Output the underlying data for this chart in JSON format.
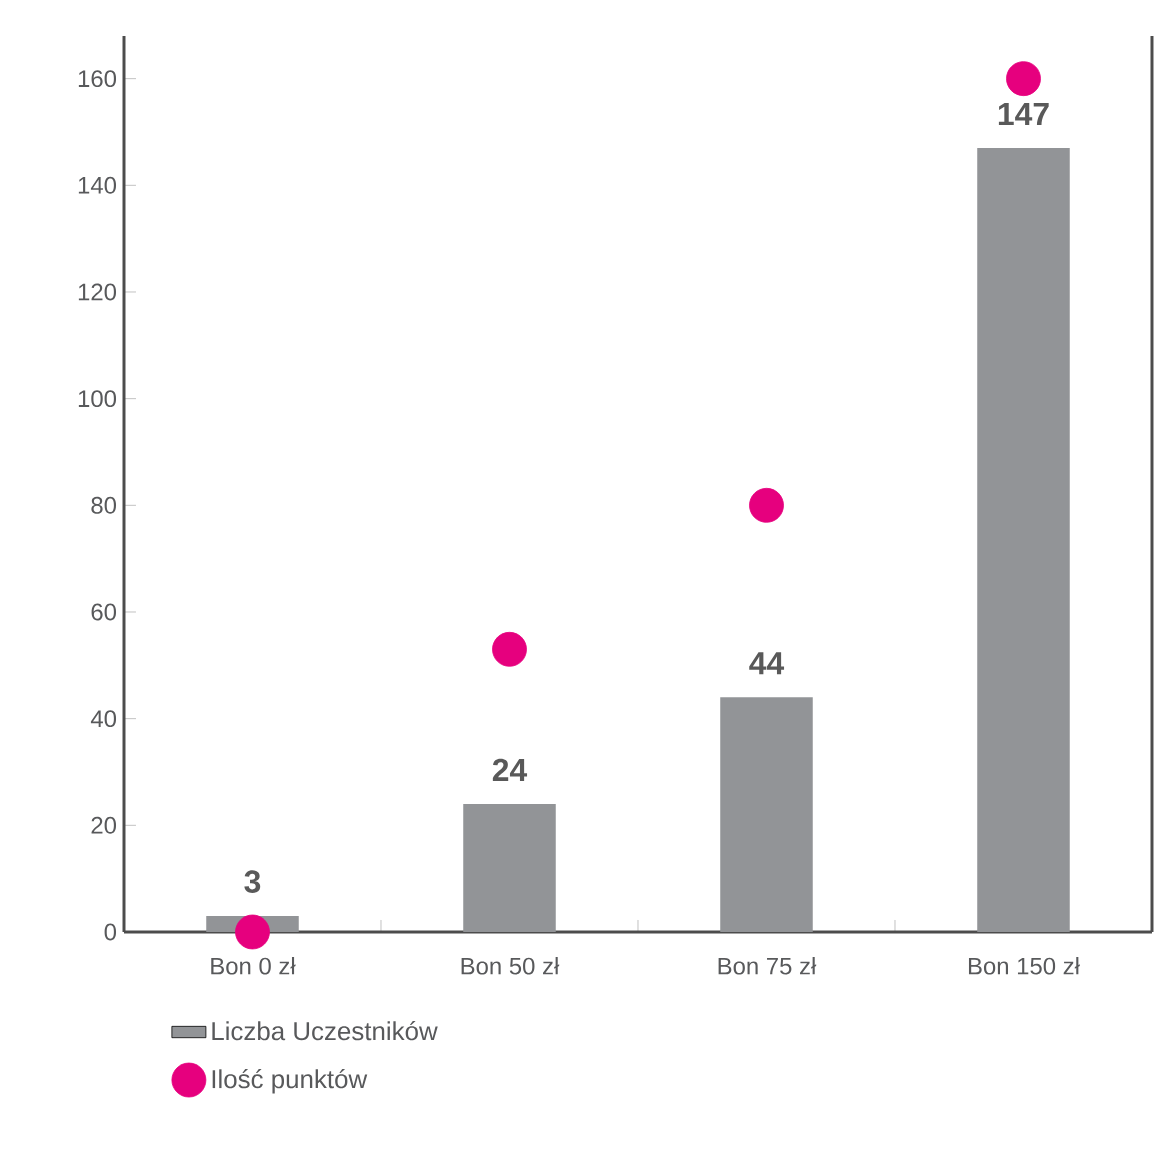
{
  "chart_data": {
    "type": "bar",
    "categories": [
      "Bon 0 zł",
      "Bon 50 zł",
      "Bon 75 zł",
      "Bon 150 zł"
    ],
    "series": [
      {
        "name": "Liczba Uczestników",
        "type": "bar",
        "color": "#929497",
        "values": [
          3,
          24,
          44,
          147
        ],
        "value_labels": [
          "3",
          "24",
          "44",
          "147"
        ]
      },
      {
        "name": "Ilość punktów",
        "type": "scatter",
        "color": "#e6007e",
        "marker": "circle",
        "values": [
          0,
          53,
          80,
          160
        ]
      }
    ],
    "ylim": [
      0,
      168
    ],
    "yticks": [
      0,
      20,
      40,
      60,
      80,
      100,
      120,
      140,
      160
    ],
    "grid": false,
    "legend": "bottom"
  }
}
